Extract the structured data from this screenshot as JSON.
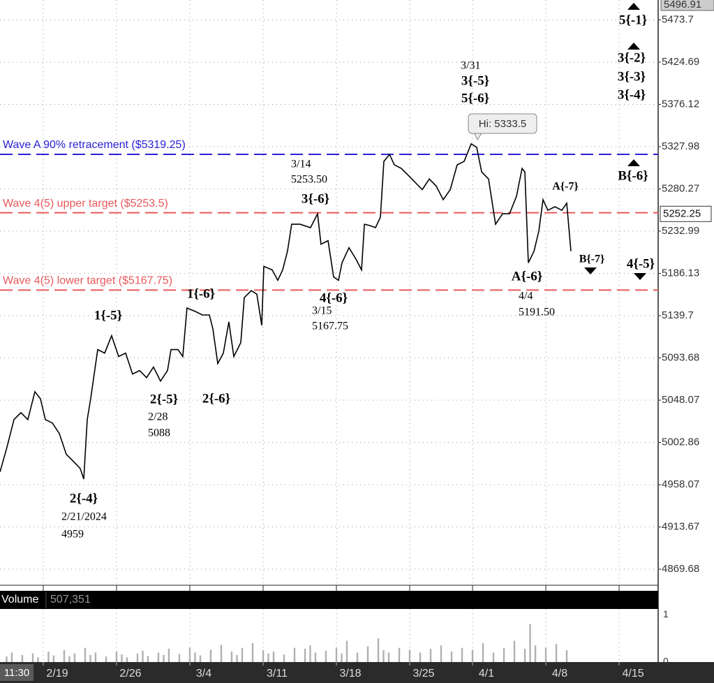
{
  "chart_data": {
    "type": "line",
    "log_y": true,
    "grid": true,
    "xlim": [
      -4.13,
      58.73
    ],
    "xticks": [
      {
        "value": 0,
        "label": "2/19"
      },
      {
        "value": 7,
        "label": "2/26"
      },
      {
        "value": 14,
        "label": "3/4"
      },
      {
        "value": 21,
        "label": "3/11"
      },
      {
        "value": 28,
        "label": "3/18"
      },
      {
        "value": 35,
        "label": "3/25"
      },
      {
        "value": 41,
        "label": "4/1"
      },
      {
        "value": 48,
        "label": "4/8"
      },
      {
        "value": 55,
        "label": "4/15"
      }
    ],
    "ylim": [
      4853.1,
      5496.91
    ],
    "yticks": [
      5473.7,
      5424.69,
      5376.12,
      5327.98,
      5280.27,
      5232.99,
      5186.13,
      5139.7,
      5093.68,
      5048.07,
      5002.86,
      4958.07,
      4913.67,
      4869.68
    ],
    "series": [
      {
        "color": "#000000",
        "x": [
          -4.13,
          -3.47,
          -2.8,
          -2.13,
          -1.47,
          -0.8,
          -0.27,
          0.2,
          0.87,
          1.53,
          2.2,
          2.87,
          3.53,
          3.87,
          4.2,
          4.53,
          5.2,
          5.87,
          6.53,
          7.2,
          7.87,
          8.53,
          9.2,
          9.87,
          10.53,
          11.2,
          11.87,
          12.2,
          12.87,
          13.33,
          13.73,
          14.53,
          15.2,
          15.87,
          16.2,
          16.67,
          17.2,
          17.73,
          18.2,
          18.87,
          19.2,
          19.87,
          20.4,
          20.87,
          21.07,
          21.87,
          22.4,
          22.87,
          23.33,
          23.73,
          24.53,
          25.53,
          26.2,
          26.53,
          27.2,
          27.73,
          28.2,
          28.53,
          29.2,
          29.87,
          30.4,
          30.67,
          31.2,
          31.73,
          32.2,
          32.53,
          33.07,
          33.53,
          34.2,
          34.87,
          35.53,
          36.2,
          36.87,
          37.53,
          38.2,
          38.87,
          39.53,
          40.2,
          40.87,
          41.4,
          41.87,
          42.53,
          43.2,
          43.87,
          44.53,
          45.2,
          45.73,
          46,
          46.33,
          46.87,
          47.33,
          47.73,
          48.2,
          48.87,
          49.53,
          50,
          50.4
        ],
        "values": [
          4971.5,
          4997.6,
          5027.3,
          5034.7,
          5027.3,
          5057.2,
          5049.6,
          5027.3,
          5023.6,
          5012.5,
          4990.2,
          4982.8,
          4975.2,
          4964.0,
          5027.3,
          5049.6,
          5102.7,
          5098.9,
          5117.8,
          5095.2,
          5098.9,
          5076.2,
          5080.0,
          5072.4,
          5083.8,
          5068.6,
          5080.0,
          5102.7,
          5102.7,
          5095.2,
          5148.1,
          5144.3,
          5140.5,
          5140.5,
          5125.4,
          5087.6,
          5098.9,
          5132.9,
          5095.2,
          5110.3,
          5159.5,
          5167.1,
          5163.3,
          5129.2,
          5193.9,
          5190.0,
          5178.5,
          5190.0,
          5210.7,
          5240.7,
          5240.7,
          5236.9,
          5252.4,
          5218.5,
          5222.4,
          5182.3,
          5178.5,
          5197.8,
          5214.6,
          5201.8,
          5190.0,
          5240.7,
          5239.2,
          5236.9,
          5248.5,
          5311.3,
          5319.2,
          5307.3,
          5303.3,
          5295.4,
          5287.5,
          5279.5,
          5291.4,
          5283.5,
          5268.1,
          5279.5,
          5307.3,
          5311.3,
          5331.1,
          5327.2,
          5299.4,
          5291.4,
          5240.7,
          5252.4,
          5252.4,
          5272.0,
          5303.3,
          5299.4,
          5197.8,
          5210.7,
          5233.0,
          5268.1,
          5256.3,
          5260.3,
          5256.3,
          5264.2,
          5210.7
        ]
      }
    ],
    "hlines": [
      {
        "label": "Wave A 90% retracement ($5319.25)",
        "value": 5319.25,
        "color": "#2a1fd6"
      },
      {
        "label": "Wave 4(5) upper target ($5253.5)",
        "value": 5253.5,
        "color": "#e8595b"
      },
      {
        "label": "Wave 4(5) lower target ($5167.75)",
        "value": 5167.75,
        "color": "#e8595b"
      }
    ],
    "annotations": [
      "2{-4}",
      "2/21/2024",
      "4959",
      "1{-5}",
      "2{-5}",
      "2/28",
      "5088",
      "1{-6}",
      "2{-6}",
      "3/14",
      "5253.50",
      "3{-6}",
      "4{-6}",
      "3/15",
      "5167.75",
      "3/31",
      "3{-5}",
      "5{-6}",
      "A{-7}",
      "A{-6}",
      "4/4",
      "5191.50",
      "B{-7}",
      "4{-5}",
      "5{-1}",
      "3{-2}",
      "3{-3}",
      "3{-4}",
      "B{-6}"
    ],
    "hi_label": "Hi: 5333.5",
    "last_price": 5252.25,
    "cursor_label": "11:30",
    "volume": {
      "type": "bar",
      "title": "Volume",
      "current": "507,351",
      "color": "#b0b0b0",
      "ylim": [
        0,
        1.12
      ],
      "yticks": [
        0,
        1
      ],
      "x": [
        -3.5,
        -3,
        -2,
        -1,
        -0.5,
        0.5,
        1,
        2,
        2.5,
        3,
        4,
        4.5,
        5,
        6,
        7,
        7.5,
        8,
        9,
        9.5,
        10,
        11,
        11.5,
        12,
        13,
        14,
        14.5,
        15,
        16,
        17,
        18,
        18.5,
        19,
        20,
        21,
        21.5,
        22,
        23,
        24,
        25,
        25.5,
        26,
        27,
        28,
        28.5,
        29,
        30,
        31,
        32,
        32.5,
        33,
        34,
        35,
        36,
        37,
        38,
        39,
        40,
        41,
        42,
        43,
        44,
        45,
        46,
        46.5,
        47,
        48,
        49,
        50
      ],
      "values": [
        0.12,
        0.2,
        0.15,
        0.18,
        0.1,
        0.22,
        0.14,
        0.25,
        0.12,
        0.18,
        0.3,
        0.15,
        0.2,
        0.12,
        0.22,
        0.16,
        0.1,
        0.18,
        0.24,
        0.13,
        0.2,
        0.15,
        0.28,
        0.17,
        0.3,
        0.2,
        0.14,
        0.26,
        0.36,
        0.22,
        0.15,
        0.3,
        0.4,
        0.25,
        0.18,
        0.22,
        0.16,
        0.3,
        0.28,
        0.35,
        0.2,
        0.24,
        0.3,
        0.18,
        0.45,
        0.2,
        0.33,
        0.5,
        0.25,
        0.2,
        0.3,
        0.26,
        0.2,
        0.28,
        0.35,
        0.22,
        0.3,
        0.26,
        0.4,
        0.2,
        0.3,
        0.45,
        0.28,
        0.8,
        0.35,
        0.3,
        0.38,
        0.25
      ]
    }
  }
}
